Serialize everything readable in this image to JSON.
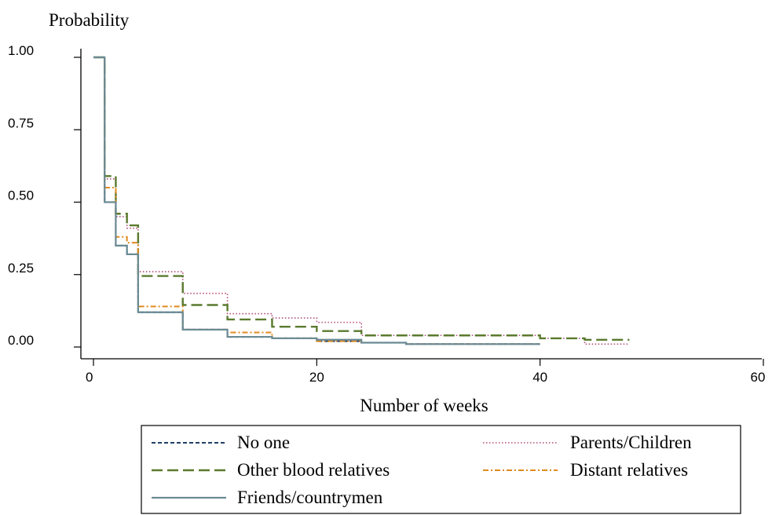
{
  "chart_data": {
    "type": "line",
    "ylabel": "Probability",
    "xlabel": "Number of weeks",
    "xlim": [
      0,
      60
    ],
    "ylim": [
      0,
      1
    ],
    "x_ticks": [
      "0",
      "20",
      "40",
      "60"
    ],
    "y_ticks": [
      "0.00",
      "0.25",
      "0.50",
      "0.75",
      "1.00"
    ],
    "grid": false,
    "legend_position": "bottom",
    "series": [
      {
        "name": "No one",
        "color": "#1f3f66",
        "dash": "dash",
        "x": [
          0,
          1,
          2,
          3,
          4,
          8,
          12,
          16,
          20,
          24,
          28,
          40
        ],
        "y": [
          1.0,
          0.5,
          0.35,
          0.32,
          0.12,
          0.06,
          0.035,
          0.03,
          0.02,
          0.015,
          0.01,
          0.01
        ]
      },
      {
        "name": "Parents/Children",
        "color": "#b04a78",
        "dash": "dot",
        "x": [
          0,
          1,
          2,
          3,
          4,
          8,
          12,
          16,
          20,
          24,
          40,
          44,
          48
        ],
        "y": [
          1.0,
          0.58,
          0.45,
          0.41,
          0.26,
          0.185,
          0.115,
          0.1,
          0.085,
          0.04,
          0.03,
          0.01,
          0.01
        ]
      },
      {
        "name": "Other blood relatives",
        "color": "#5a7a2e",
        "dash": "longdash",
        "x": [
          0,
          1,
          2,
          3,
          4,
          8,
          12,
          16,
          20,
          24,
          40,
          44,
          48
        ],
        "y": [
          1.0,
          0.59,
          0.46,
          0.42,
          0.245,
          0.145,
          0.095,
          0.07,
          0.055,
          0.04,
          0.03,
          0.025,
          0.025
        ]
      },
      {
        "name": "Distant relatives",
        "color": "#e08a1e",
        "dash": "dashdot",
        "x": [
          0,
          1,
          2,
          3,
          4,
          8,
          12,
          16,
          20,
          24,
          28,
          40
        ],
        "y": [
          1.0,
          0.55,
          0.38,
          0.36,
          0.14,
          0.06,
          0.05,
          0.03,
          0.02,
          0.015,
          0.01,
          0.01
        ]
      },
      {
        "name": "Friends/countrymen",
        "color": "#6a8a94",
        "dash": "solid",
        "x": [
          0,
          1,
          2,
          3,
          4,
          8,
          12,
          16,
          20,
          24,
          28,
          40
        ],
        "y": [
          1.0,
          0.5,
          0.35,
          0.32,
          0.12,
          0.06,
          0.035,
          0.03,
          0.025,
          0.015,
          0.01,
          0.01
        ]
      }
    ]
  },
  "legend": {
    "items": [
      {
        "label": "No one",
        "series": 0
      },
      {
        "label": "Parents/Children",
        "series": 1
      },
      {
        "label": "Other blood relatives",
        "series": 2
      },
      {
        "label": "Distant relatives",
        "series": 3
      },
      {
        "label": "Friends/countrymen",
        "series": 4
      }
    ]
  }
}
